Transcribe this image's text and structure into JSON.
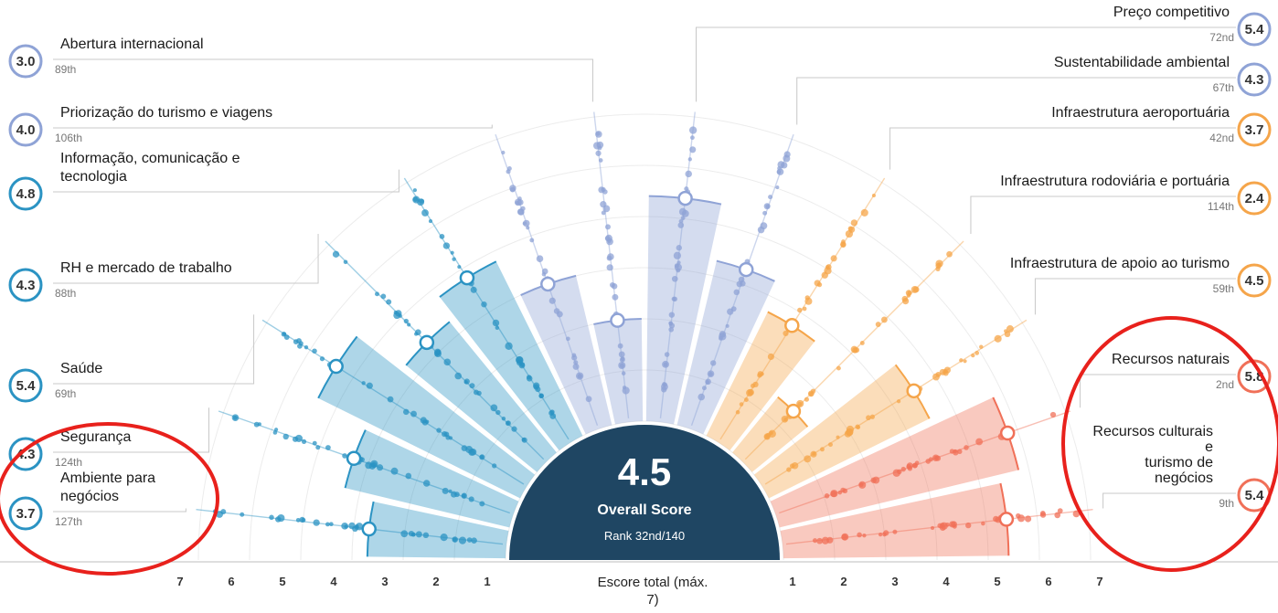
{
  "chart_data": {
    "type": "radial-bar",
    "overall": {
      "value": "4.5",
      "label": "Overall Score",
      "rank": "Rank 32nd/140"
    },
    "axis_title": "Escore total (máx. 7)",
    "axis_range": [
      1,
      7
    ],
    "ticks_left": [
      "7",
      "6",
      "5",
      "4",
      "3",
      "2",
      "1"
    ],
    "ticks_right": [
      "1",
      "2",
      "3",
      "4",
      "5",
      "6",
      "7"
    ],
    "colors": {
      "business": "#2b93c3",
      "policy": "#8fa3d6",
      "infra": "#f5a54a",
      "resources": "#f07058",
      "center": "#1f4663",
      "highlight": "#e8211c"
    },
    "pillars": [
      {
        "name": "Ambiente para negócios",
        "name_lines": [
          "Ambiente para",
          "negócios"
        ],
        "score": 3.7,
        "score_label": "3.7",
        "rank": "127th",
        "group": "business"
      },
      {
        "name": "Segurança",
        "name_lines": [
          "Segurança"
        ],
        "score": 4.3,
        "score_label": "4.3",
        "rank": "124th",
        "group": "business"
      },
      {
        "name": "Saúde",
        "name_lines": [
          "Saúde"
        ],
        "score": 5.4,
        "score_label": "5.4",
        "rank": "69th",
        "group": "business"
      },
      {
        "name": "RH e mercado de trabalho",
        "name_lines": [
          "RH e mercado de trabalho"
        ],
        "score": 4.3,
        "score_label": "4.3",
        "rank": "88th",
        "group": "business"
      },
      {
        "name": "Informação, comunicação e tecnologia",
        "name_lines": [
          "Informação, comunicação e",
          "tecnologia"
        ],
        "score": 4.8,
        "score_label": "4.8",
        "rank": "",
        "group": "business"
      },
      {
        "name": "Priorização do turismo e viagens",
        "name_lines": [
          "Priorização do turismo e viagens"
        ],
        "score": 4.0,
        "score_label": "4.0",
        "rank": "106th",
        "group": "policy"
      },
      {
        "name": "Abertura internacional",
        "name_lines": [
          "Abertura internacional"
        ],
        "score": 3.0,
        "score_label": "3.0",
        "rank": "89th",
        "group": "policy"
      },
      {
        "name": "Preço competitivo",
        "name_lines": [
          "Preço competitivo"
        ],
        "score": 5.4,
        "score_label": "5.4",
        "rank": "72nd",
        "group": "policy"
      },
      {
        "name": "Sustentabilidade ambiental",
        "name_lines": [
          "Sustentabilidade ambiental"
        ],
        "score": 4.3,
        "score_label": "4.3",
        "rank": "67th",
        "group": "policy"
      },
      {
        "name": "Infraestrutura aeroportuária",
        "name_lines": [
          "Infraestrutura aeroportuária"
        ],
        "score": 3.7,
        "score_label": "3.7",
        "rank": "42nd",
        "group": "infra"
      },
      {
        "name": "Infraestrutura rodoviária e portuária",
        "name_lines": [
          "Infraestrutura rodoviária e portuária"
        ],
        "score": 2.4,
        "score_label": "2.4",
        "rank": "114th",
        "group": "infra"
      },
      {
        "name": "Infraestrutura de apoio ao turismo",
        "name_lines": [
          "Infraestrutura de apoio ao turismo"
        ],
        "score": 4.5,
        "score_label": "4.5",
        "rank": "59th",
        "group": "infra"
      },
      {
        "name": "Recursos naturais",
        "name_lines": [
          "Recursos naturais"
        ],
        "score": 5.8,
        "score_label": "5.8",
        "rank": "2nd",
        "group": "resources"
      },
      {
        "name": "Recursos culturais e turismo de negócios",
        "name_lines": [
          "Recursos culturais",
          "e",
          "turismo de",
          "negócios"
        ],
        "score": 5.4,
        "score_label": "5.4",
        "rank": "9th",
        "group": "resources"
      }
    ]
  }
}
